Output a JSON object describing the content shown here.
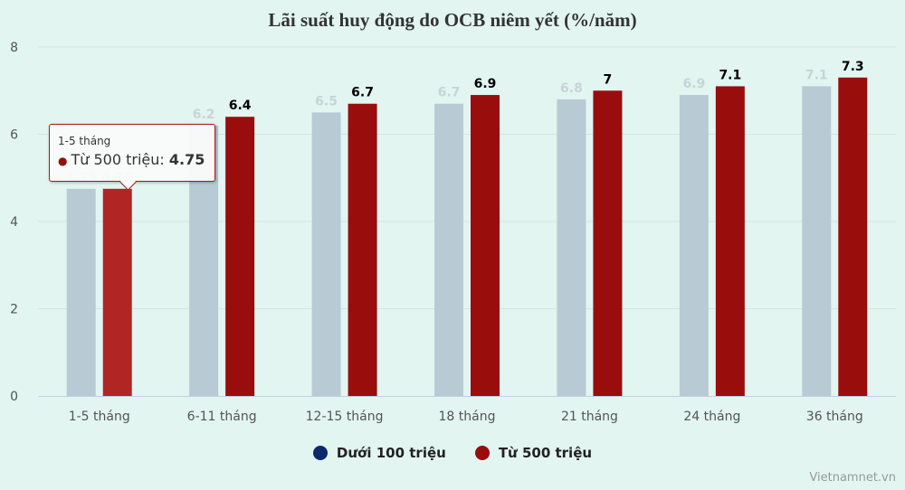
{
  "chart_data": {
    "type": "bar",
    "title": "Lãi suất huy động do OCB niêm yết (%/năm)",
    "categories": [
      "1-5 tháng",
      "6-11 tháng",
      "12-15 tháng",
      "18 tháng",
      "21 tháng",
      "24 tháng",
      "36 tháng"
    ],
    "series": [
      {
        "name": "Dưới 100 triệu",
        "color": "#0d2a6b",
        "values": [
          4.75,
          6.2,
          6.5,
          6.7,
          6.8,
          6.9,
          7.1
        ]
      },
      {
        "name": "Từ 500 triệu",
        "color": "#990d0d",
        "values": [
          4.75,
          6.4,
          6.7,
          6.9,
          7,
          7.1,
          7.3
        ]
      }
    ],
    "ylim": [
      0,
      8
    ],
    "yticks": [
      0,
      2,
      4,
      6,
      8
    ],
    "grid": true,
    "legend": "bottom",
    "tooltip": {
      "category": "1-5 tháng",
      "series": "Từ 500 triệu",
      "value": "4.75"
    },
    "credit": "Vietnamnet.vn"
  }
}
